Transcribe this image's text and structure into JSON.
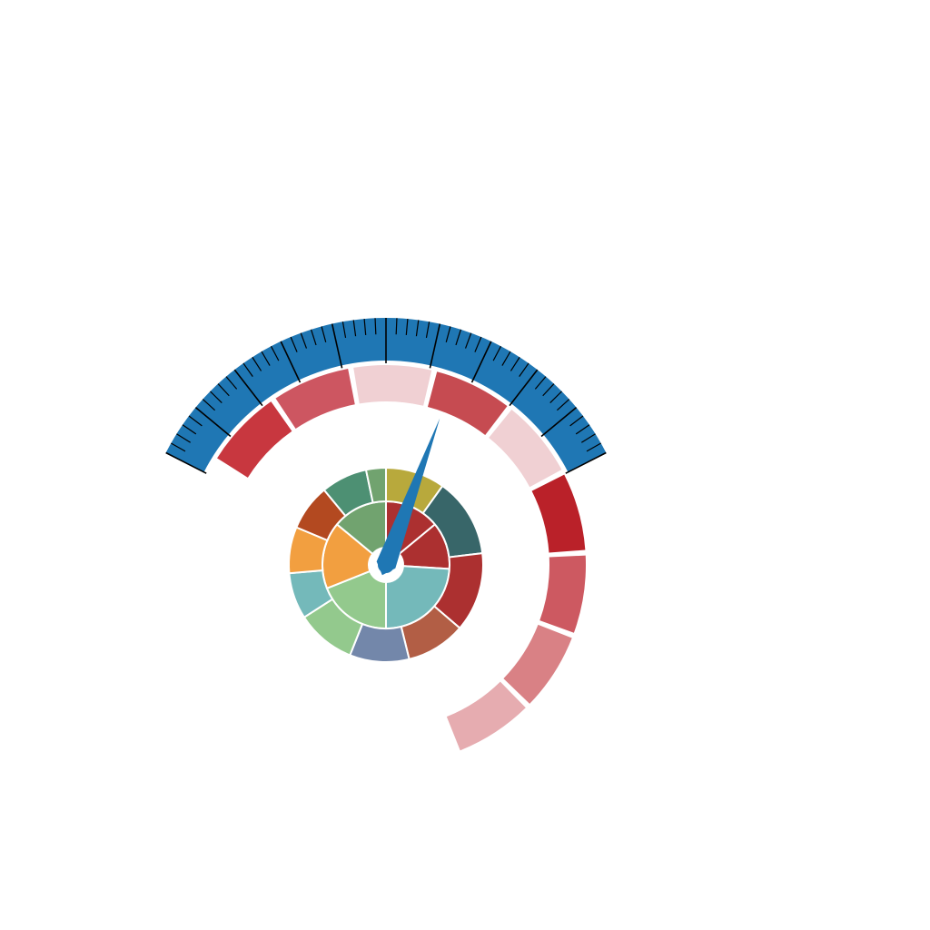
{
  "chart_data": {
    "type": "gauge",
    "title": "",
    "gauge": {
      "min": 0,
      "max": 100,
      "value": 66,
      "scale_color": "#1f77b4",
      "needle_color": "#1f77b4",
      "major_tick_step": 10,
      "minor_tick_step": 2
    },
    "outer_band": {
      "segments": [
        {
          "value": 16,
          "color": "#c8373f"
        },
        {
          "value": 16,
          "color": "#cd5661"
        },
        {
          "value": 16,
          "color": "#f0d0d3"
        },
        {
          "value": 16,
          "color": "#c64b51"
        },
        {
          "value": 16,
          "color": "#f0d0d3"
        },
        {
          "value": 16,
          "color": "#ba2129"
        },
        {
          "value": 16,
          "color": "#cd5961"
        },
        {
          "value": 16,
          "color": "#d98185"
        },
        {
          "value": 16,
          "color": "#e6acb0"
        }
      ]
    },
    "sunburst": {
      "inner": [
        {
          "value": 14,
          "color": "#ac3030"
        },
        {
          "value": 12,
          "color": "#ac3030"
        },
        {
          "value": 24,
          "color": "#74b9ba"
        },
        {
          "value": 19,
          "color": "#93c98d"
        },
        {
          "value": 17,
          "color": "#f29f40"
        },
        {
          "value": 14,
          "color": "#71a36f"
        }
      ],
      "outer": [
        {
          "value": 9,
          "color": "#b8a93c"
        },
        {
          "value": 12,
          "color": "#386669"
        },
        {
          "value": 12,
          "color": "#ac3030"
        },
        {
          "value": 9,
          "color": "#b25e45"
        },
        {
          "value": 9,
          "color": "#7387aa"
        },
        {
          "value": 9,
          "color": "#93c98d"
        },
        {
          "value": 7,
          "color": "#74b9ba"
        },
        {
          "value": 7,
          "color": "#f29f40"
        },
        {
          "value": 7,
          "color": "#b34920"
        },
        {
          "value": 7,
          "color": "#4d9073"
        },
        {
          "value": 3,
          "color": "#71a36f"
        }
      ]
    }
  }
}
